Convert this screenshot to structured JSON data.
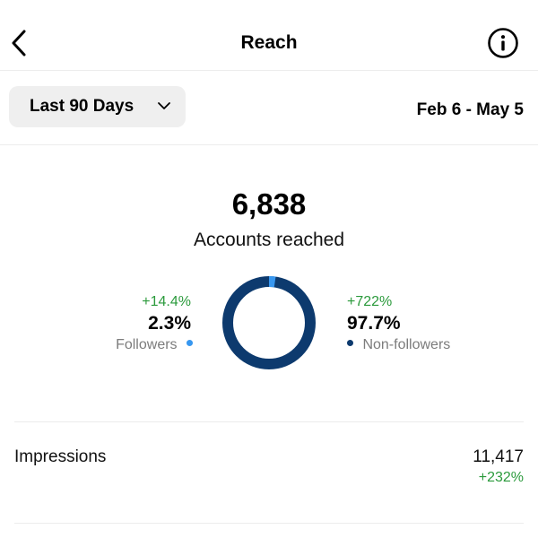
{
  "header": {
    "title": "Reach",
    "back_icon": "chevron-left-icon",
    "info_icon": "info-icon"
  },
  "filter": {
    "range_label": "Last 90 Days",
    "range_icon": "chevron-down-icon",
    "date_range": "Feb 6 - May 5"
  },
  "summary": {
    "total": "6,838",
    "total_label": "Accounts reached"
  },
  "split": {
    "followers": {
      "change": "+14.4%",
      "percent": "2.3%",
      "label": "Followers",
      "share": 0.023,
      "color": "#3797f0"
    },
    "non_followers": {
      "change": "+722%",
      "percent": "97.7%",
      "label": "Non-followers",
      "share": 0.977,
      "color": "#0d3a6e"
    }
  },
  "impressions": {
    "label": "Impressions",
    "value": "11,417",
    "change": "+232%"
  },
  "colors": {
    "positive": "#2b9a3c",
    "muted": "#7c7c7c",
    "divider": "#ececec",
    "pill_bg": "#efefef"
  }
}
